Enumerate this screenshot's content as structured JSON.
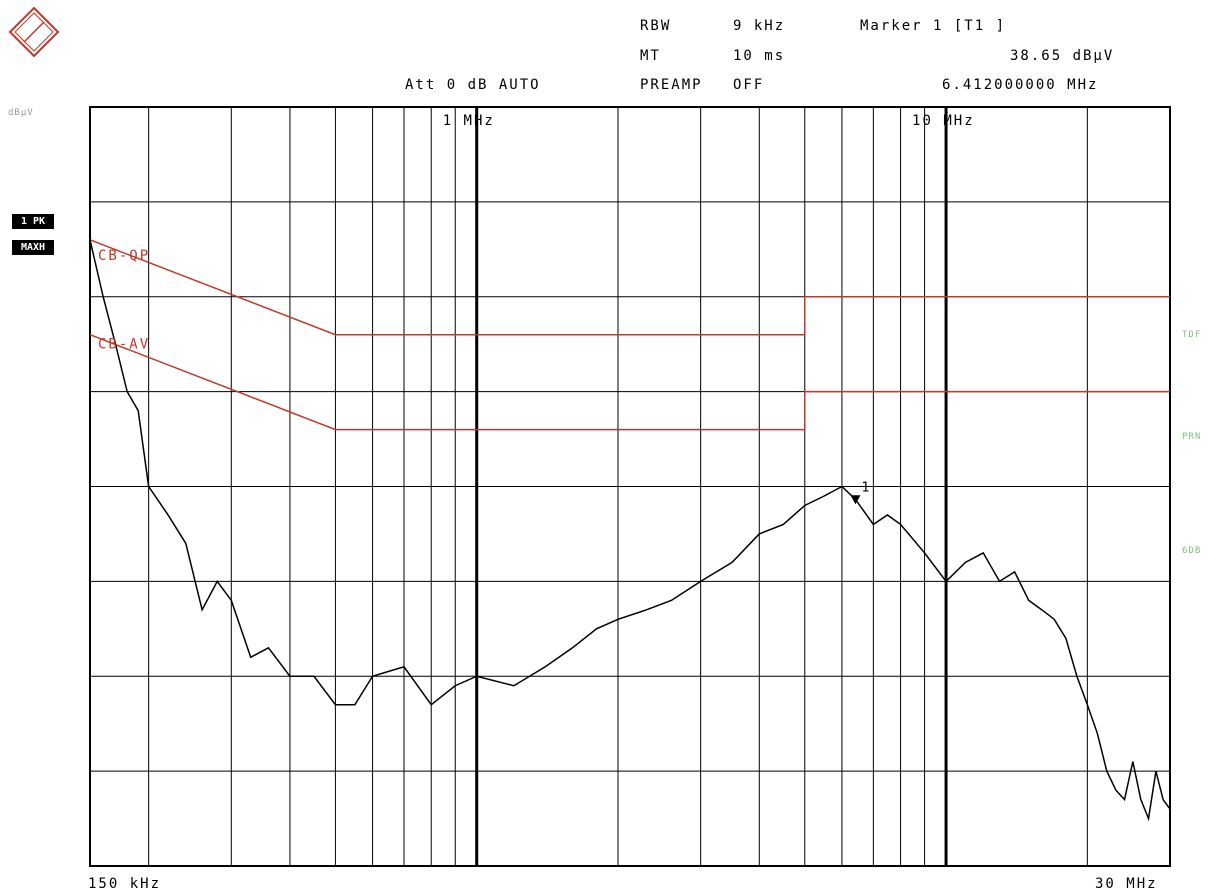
{
  "header": {
    "rbw_label": "RBW",
    "rbw_value": "9 kHz",
    "mt_label": "MT",
    "mt_value": "10 ms",
    "att": "Att 0 dB AUTO",
    "preamp_label": "PREAMP",
    "preamp_value": "OFF",
    "marker_title": "Marker 1 [T1 ]",
    "marker_level": "38.65 dBµV",
    "marker_freq": "6.412000000 MHz"
  },
  "side": {
    "unit": "dBµV",
    "trace_badge": "1 PK",
    "mode_badge": "MAXH",
    "right_labels": [
      "TDF",
      "PRN",
      "6DB"
    ]
  },
  "footer": {
    "start": "150 kHz",
    "stop": "30 MHz"
  },
  "colors": {
    "trace": "#000000",
    "limit": "#c0392b",
    "grid": "#000000",
    "right_labels": "#7fbf7f"
  },
  "chart_data": {
    "type": "line",
    "x_scale": "log",
    "xlim_mhz": [
      0.15,
      30
    ],
    "ylim_dbuv": [
      0,
      80
    ],
    "grid": true,
    "x_tick_labels": [
      "1 MHz",
      "10 MHz"
    ],
    "limit_lines": [
      {
        "name": "CB-QP",
        "points": [
          [
            0.15,
            66
          ],
          [
            0.5,
            56
          ],
          [
            5,
            56
          ],
          [
            5,
            60
          ],
          [
            30,
            60
          ]
        ]
      },
      {
        "name": "CB-AV",
        "points": [
          [
            0.15,
            56
          ],
          [
            0.5,
            46
          ],
          [
            5,
            46
          ],
          [
            5,
            50
          ],
          [
            30,
            50
          ]
        ]
      }
    ],
    "marker": {
      "label": "1",
      "freq_mhz": 6.412,
      "level_dbuv": 38.65
    },
    "series": [
      {
        "x": [
          0.15,
          0.16,
          0.17,
          0.18,
          0.19,
          0.2,
          0.22,
          0.24,
          0.26,
          0.28,
          0.3,
          0.33,
          0.36,
          0.4,
          0.45,
          0.5,
          0.55,
          0.6,
          0.7,
          0.8,
          0.9,
          1.0,
          1.2,
          1.4,
          1.6,
          1.8,
          2.0,
          2.3,
          2.6,
          3.0,
          3.5,
          4.0,
          4.5,
          5.0,
          5.5,
          6.0,
          6.41,
          7.0,
          7.5,
          8.0,
          9.0,
          10.0,
          11.0,
          12.0,
          13.0,
          14.0,
          15.0,
          16.0,
          17.0,
          18.0,
          19.0,
          20.0,
          21.0,
          22.0,
          23.0,
          24.0,
          25.0,
          26.0,
          27.0,
          28.0,
          29.0,
          30.0
        ],
        "y": [
          66,
          60,
          55,
          50,
          48,
          40,
          37,
          34,
          27,
          30,
          28,
          22,
          23,
          20,
          20,
          17,
          17,
          20,
          21,
          17,
          19,
          20,
          19,
          21,
          23,
          25,
          26,
          27,
          28,
          30,
          32,
          35,
          36,
          38,
          39,
          40,
          38.65,
          36,
          37,
          36,
          33,
          30,
          32,
          33,
          30,
          31,
          28,
          27,
          26,
          24,
          20,
          17,
          14,
          10,
          8,
          7,
          11,
          7,
          5,
          10,
          7,
          6
        ]
      }
    ]
  }
}
